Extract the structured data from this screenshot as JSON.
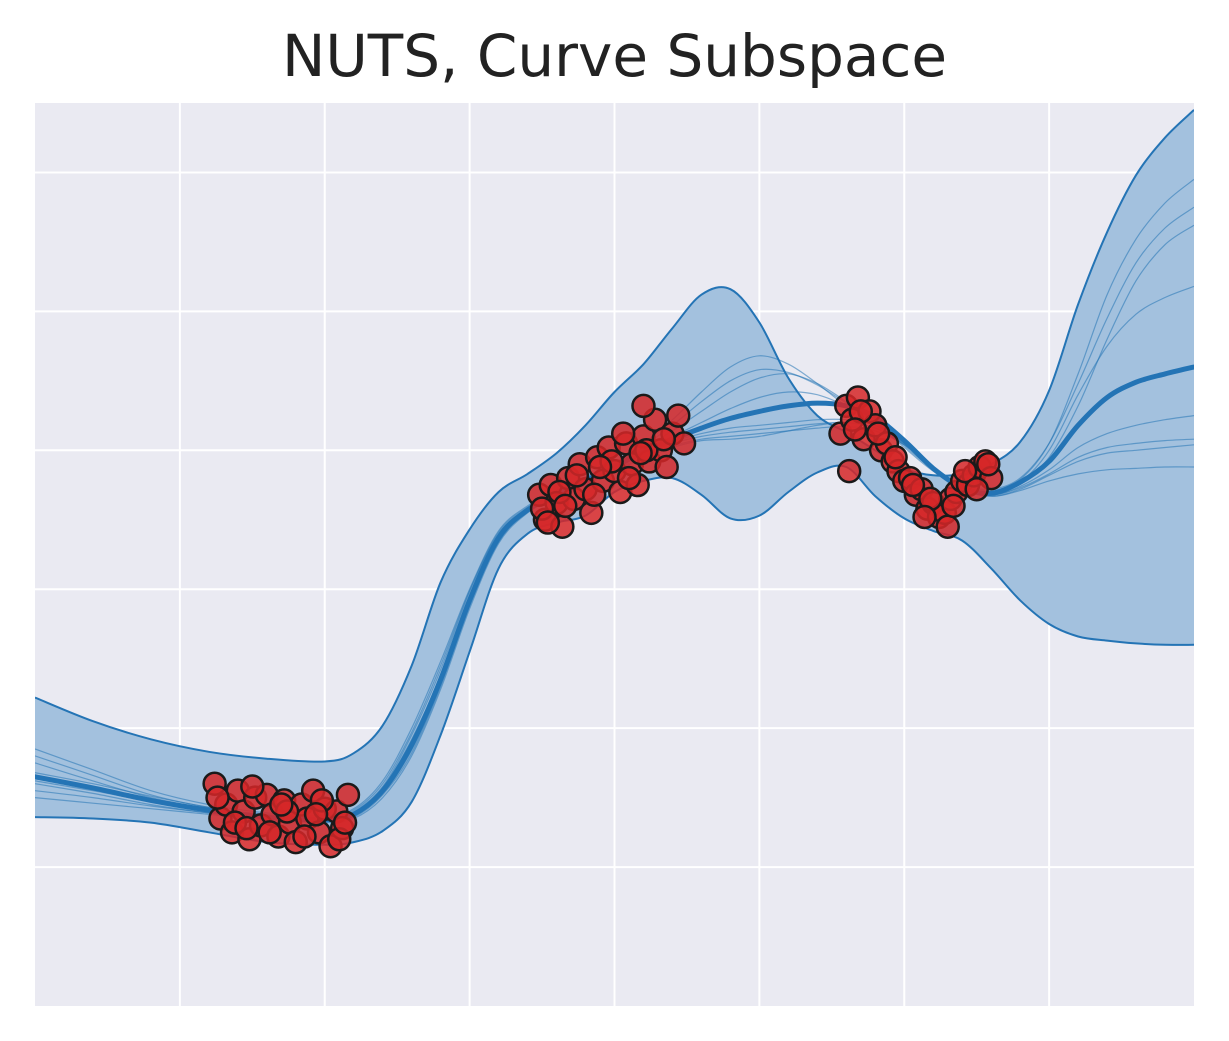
{
  "chart_data": {
    "type": "line",
    "title": "NUTS, Curve Subspace",
    "xlabel": "",
    "ylabel": "",
    "xlim": [
      -10,
      10
    ],
    "ylim": [
      -3.5,
      3
    ],
    "x_ticks": [
      -7.5,
      -5,
      -2.5,
      0,
      2.5,
      5,
      7.5
    ],
    "y_ticks": [
      -2.5,
      -1.5,
      -0.5,
      0.5,
      1.5,
      2.5
    ],
    "grid": true,
    "background": "#eaeaf2",
    "colors": {
      "band_fill": "#a3c1de",
      "line": "#2474b5",
      "points": "#d62728",
      "point_edge": "#1a1a1a",
      "grid": "#ffffff"
    },
    "x": [
      -10,
      -9,
      -8,
      -7,
      -6,
      -5,
      -4.5,
      -4,
      -3.5,
      -3,
      -2.5,
      -2,
      -1.5,
      -1,
      -0.5,
      0,
      0.5,
      1,
      1.5,
      2,
      2.5,
      3,
      3.5,
      4,
      4.5,
      5,
      5.5,
      6,
      6.5,
      7,
      7.5,
      8,
      8.5,
      9,
      9.5,
      10
    ],
    "mean": [
      -1.85,
      -1.93,
      -2.02,
      -2.09,
      -2.14,
      -2.16,
      -2.12,
      -1.95,
      -1.62,
      -1.15,
      -0.58,
      -0.13,
      0.07,
      0.18,
      0.28,
      0.38,
      0.49,
      0.58,
      0.66,
      0.73,
      0.78,
      0.82,
      0.84,
      0.82,
      0.74,
      0.57,
      0.37,
      0.23,
      0.19,
      0.27,
      0.42,
      0.68,
      0.88,
      0.99,
      1.05,
      1.1
    ],
    "upper": [
      -1.28,
      -1.45,
      -1.58,
      -1.67,
      -1.72,
      -1.74,
      -1.68,
      -1.48,
      -1.05,
      -0.45,
      -0.07,
      0.2,
      0.33,
      0.48,
      0.68,
      0.92,
      1.12,
      1.38,
      1.62,
      1.66,
      1.42,
      1.02,
      0.75,
      0.63,
      0.5,
      0.37,
      0.32,
      0.33,
      0.4,
      0.56,
      0.93,
      1.55,
      2.07,
      2.48,
      2.75,
      2.95
    ],
    "lower": [
      -2.14,
      -2.15,
      -2.18,
      -2.25,
      -2.32,
      -2.34,
      -2.32,
      -2.24,
      -2.03,
      -1.55,
      -0.95,
      -0.35,
      -0.1,
      -0.02,
      0.03,
      0.2,
      0.28,
      0.3,
      0.18,
      0.01,
      0.03,
      0.2,
      0.34,
      0.38,
      0.17,
      0.01,
      -0.08,
      -0.15,
      -0.35,
      -0.58,
      -0.75,
      -0.84,
      -0.87,
      -0.89,
      -0.9,
      -0.9
    ],
    "series": [
      {
        "values": [
          -1.75,
          -1.88,
          -2.0,
          -2.08,
          -2.13,
          -2.15,
          -2.1,
          -1.92,
          -1.55,
          -1.08,
          -0.52,
          -0.1,
          0.08,
          0.2,
          0.3,
          0.4,
          0.52,
          0.64,
          0.78,
          0.92,
          1.02,
          1.05,
          0.98,
          0.85,
          0.7,
          0.52,
          0.35,
          0.24,
          0.2,
          0.26,
          0.45,
          0.82,
          1.3,
          1.72,
          1.98,
          2.12
        ]
      },
      {
        "values": [
          -1.88,
          -1.95,
          -2.03,
          -2.1,
          -2.15,
          -2.17,
          -2.13,
          -1.96,
          -1.65,
          -1.18,
          -0.6,
          -0.15,
          0.06,
          0.17,
          0.27,
          0.37,
          0.47,
          0.56,
          0.62,
          0.66,
          0.68,
          0.7,
          0.72,
          0.72,
          0.68,
          0.55,
          0.38,
          0.24,
          0.18,
          0.24,
          0.36,
          0.52,
          0.62,
          0.68,
          0.72,
          0.75
        ]
      },
      {
        "values": [
          -2.0,
          -2.04,
          -2.08,
          -2.12,
          -2.16,
          -2.18,
          -2.15,
          -2.0,
          -1.7,
          -1.22,
          -0.64,
          -0.17,
          0.05,
          0.16,
          0.25,
          0.35,
          0.44,
          0.52,
          0.57,
          0.58,
          0.6,
          0.64,
          0.68,
          0.7,
          0.66,
          0.54,
          0.37,
          0.22,
          0.17,
          0.22,
          0.32,
          0.42,
          0.48,
          0.5,
          0.52,
          0.54
        ]
      },
      {
        "values": [
          -1.65,
          -1.8,
          -1.95,
          -2.05,
          -2.11,
          -2.13,
          -2.08,
          -1.88,
          -1.5,
          -1.02,
          -0.5,
          -0.08,
          0.1,
          0.21,
          0.31,
          0.41,
          0.55,
          0.72,
          0.92,
          1.1,
          1.18,
          1.12,
          0.98,
          0.82,
          0.7,
          0.54,
          0.36,
          0.25,
          0.22,
          0.3,
          0.55,
          0.98,
          1.45,
          1.85,
          2.1,
          2.25
        ]
      },
      {
        "values": [
          -1.95,
          -2.0,
          -2.06,
          -2.11,
          -2.15,
          -2.17,
          -2.14,
          -1.98,
          -1.68,
          -1.2,
          -0.62,
          -0.16,
          0.06,
          0.17,
          0.26,
          0.36,
          0.45,
          0.53,
          0.58,
          0.6,
          0.62,
          0.64,
          0.66,
          0.67,
          0.64,
          0.54,
          0.38,
          0.23,
          0.17,
          0.21,
          0.28,
          0.33,
          0.36,
          0.37,
          0.38,
          0.38
        ]
      },
      {
        "values": [
          -1.82,
          -1.9,
          -1.99,
          -2.07,
          -2.13,
          -2.15,
          -2.11,
          -1.93,
          -1.58,
          -1.12,
          -0.55,
          -0.12,
          0.07,
          0.19,
          0.29,
          0.39,
          0.5,
          0.6,
          0.7,
          0.8,
          0.88,
          0.92,
          0.9,
          0.82,
          0.72,
          0.56,
          0.37,
          0.23,
          0.19,
          0.27,
          0.5,
          0.9,
          1.25,
          1.48,
          1.6,
          1.68
        ]
      },
      {
        "values": [
          -1.7,
          -1.84,
          -1.98,
          -2.07,
          -2.12,
          -2.14,
          -2.09,
          -1.9,
          -1.53,
          -1.05,
          -0.51,
          -0.09,
          0.09,
          0.2,
          0.3,
          0.4,
          0.53,
          0.68,
          0.85,
          1.0,
          1.08,
          1.06,
          0.97,
          0.84,
          0.71,
          0.53,
          0.36,
          0.24,
          0.21,
          0.29,
          0.55,
          1.05,
          1.62,
          2.02,
          2.28,
          2.45
        ]
      },
      {
        "values": [
          -1.9,
          -1.97,
          -2.05,
          -2.11,
          -2.15,
          -2.17,
          -2.13,
          -1.97,
          -1.66,
          -1.19,
          -0.61,
          -0.15,
          0.06,
          0.17,
          0.27,
          0.37,
          0.47,
          0.55,
          0.6,
          0.63,
          0.65,
          0.67,
          0.69,
          0.7,
          0.66,
          0.55,
          0.38,
          0.23,
          0.18,
          0.23,
          0.33,
          0.45,
          0.52,
          0.55,
          0.57,
          0.58
        ]
      }
    ],
    "points": [
      [
        -6.9,
        -1.9
      ],
      [
        -6.8,
        -2.15
      ],
      [
        -6.7,
        -2.05
      ],
      [
        -6.6,
        -2.25
      ],
      [
        -6.5,
        -1.95
      ],
      [
        -6.4,
        -2.1
      ],
      [
        -6.3,
        -2.3
      ],
      [
        -6.2,
        -2.0
      ],
      [
        -6.1,
        -2.2
      ],
      [
        -6.0,
        -1.98
      ],
      [
        -5.9,
        -2.12
      ],
      [
        -5.8,
        -2.28
      ],
      [
        -5.7,
        -2.02
      ],
      [
        -5.6,
        -2.18
      ],
      [
        -5.5,
        -2.32
      ],
      [
        -5.4,
        -2.05
      ],
      [
        -5.3,
        -2.15
      ],
      [
        -5.2,
        -1.95
      ],
      [
        -5.1,
        -2.25
      ],
      [
        -5.0,
        -2.08
      ],
      [
        -4.9,
        -2.35
      ],
      [
        -4.8,
        -2.1
      ],
      [
        -4.7,
        -2.22
      ],
      [
        -4.6,
        -1.98
      ],
      [
        -6.85,
        -2.0
      ],
      [
        -6.55,
        -2.18
      ],
      [
        -6.25,
        -1.92
      ],
      [
        -5.95,
        -2.25
      ],
      [
        -5.65,
        -2.1
      ],
      [
        -5.35,
        -2.28
      ],
      [
        -5.05,
        -2.02
      ],
      [
        -4.75,
        -2.3
      ],
      [
        -6.35,
        -2.22
      ],
      [
        -5.75,
        -2.05
      ],
      [
        -5.15,
        -2.12
      ],
      [
        -4.65,
        -2.18
      ],
      [
        -1.3,
        0.18
      ],
      [
        -1.2,
        0.0
      ],
      [
        -1.1,
        0.25
      ],
      [
        -1.0,
        0.12
      ],
      [
        -0.9,
        -0.05
      ],
      [
        -0.8,
        0.3
      ],
      [
        -0.7,
        0.15
      ],
      [
        -0.6,
        0.4
      ],
      [
        -0.5,
        0.22
      ],
      [
        -0.4,
        0.05
      ],
      [
        -0.3,
        0.45
      ],
      [
        -0.2,
        0.28
      ],
      [
        -0.1,
        0.52
      ],
      [
        0.0,
        0.35
      ],
      [
        0.1,
        0.2
      ],
      [
        0.2,
        0.55
      ],
      [
        0.3,
        0.4
      ],
      [
        0.4,
        0.25
      ],
      [
        0.5,
        0.6
      ],
      [
        0.6,
        0.42
      ],
      [
        0.7,
        0.72
      ],
      [
        0.8,
        0.5
      ],
      [
        0.9,
        0.38
      ],
      [
        1.0,
        0.62
      ],
      [
        1.1,
        0.75
      ],
      [
        1.2,
        0.55
      ],
      [
        -1.25,
        0.08
      ],
      [
        -0.95,
        0.2
      ],
      [
        -0.65,
        0.32
      ],
      [
        -0.35,
        0.18
      ],
      [
        -0.05,
        0.42
      ],
      [
        0.25,
        0.3
      ],
      [
        0.55,
        0.5
      ],
      [
        0.85,
        0.58
      ],
      [
        -0.85,
        0.1
      ],
      [
        -0.25,
        0.38
      ],
      [
        0.45,
        0.48
      ],
      [
        0.5,
        0.82
      ],
      [
        -1.15,
        -0.02
      ],
      [
        0.15,
        0.62
      ],
      [
        3.9,
        0.62
      ],
      [
        4.0,
        0.82
      ],
      [
        4.05,
        0.35
      ],
      [
        4.1,
        0.72
      ],
      [
        4.2,
        0.88
      ],
      [
        4.3,
        0.58
      ],
      [
        4.4,
        0.78
      ],
      [
        4.5,
        0.68
      ],
      [
        4.6,
        0.5
      ],
      [
        4.7,
        0.55
      ],
      [
        4.8,
        0.42
      ],
      [
        4.9,
        0.35
      ],
      [
        5.0,
        0.28
      ],
      [
        5.1,
        0.3
      ],
      [
        5.2,
        0.18
      ],
      [
        5.3,
        0.22
      ],
      [
        5.4,
        0.08
      ],
      [
        5.5,
        0.12
      ],
      [
        5.6,
        0.02
      ],
      [
        5.7,
        0.05
      ],
      [
        5.8,
        0.15
      ],
      [
        5.9,
        0.2
      ],
      [
        6.0,
        0.28
      ],
      [
        6.1,
        0.25
      ],
      [
        6.2,
        0.32
      ],
      [
        6.3,
        0.38
      ],
      [
        6.4,
        0.42
      ],
      [
        6.5,
        0.3
      ],
      [
        5.75,
        -0.05
      ],
      [
        5.85,
        0.1
      ],
      [
        6.05,
        0.35
      ],
      [
        6.25,
        0.22
      ],
      [
        4.25,
        0.78
      ],
      [
        4.55,
        0.62
      ],
      [
        4.85,
        0.45
      ],
      [
        5.15,
        0.25
      ],
      [
        5.45,
        0.15
      ],
      [
        5.35,
        0.02
      ],
      [
        6.45,
        0.4
      ],
      [
        4.15,
        0.65
      ]
    ]
  }
}
